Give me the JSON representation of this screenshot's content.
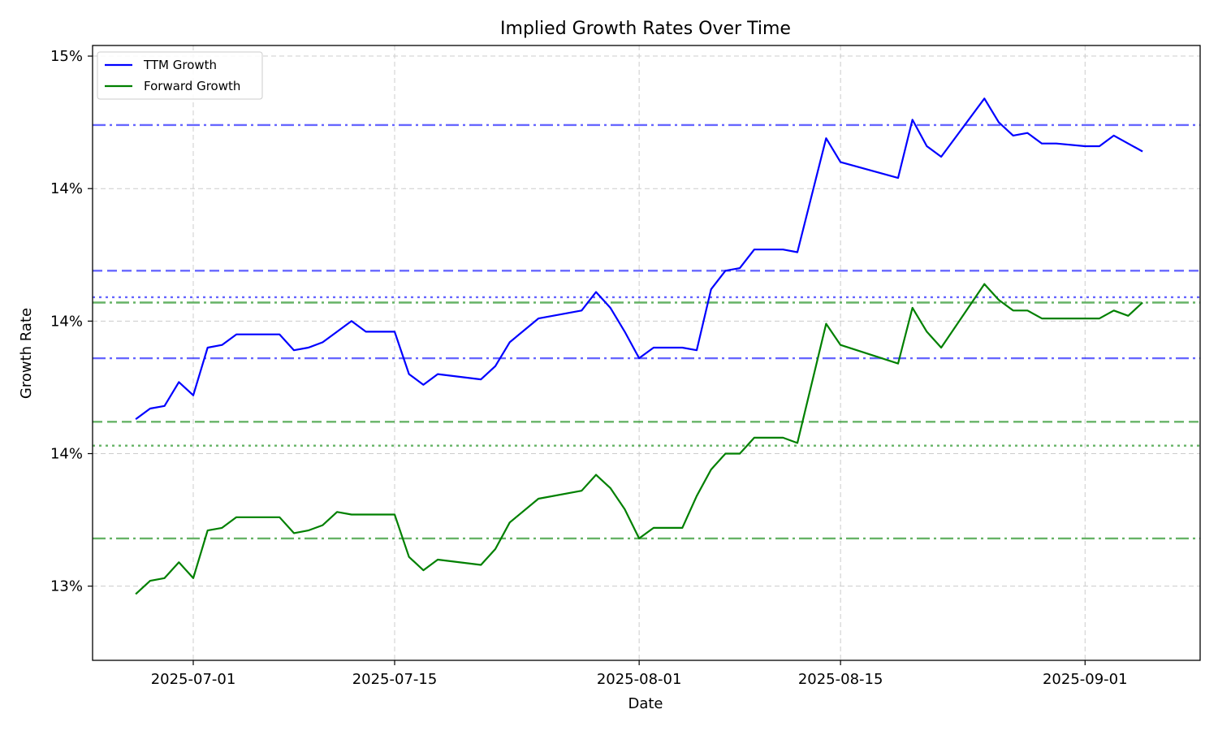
{
  "chart_data": {
    "type": "line",
    "title": "Implied Growth Rates Over Time",
    "xlabel": "Date",
    "ylabel": "Growth Rate",
    "grid": true,
    "legend_position": "top-left",
    "x_range": [
      "2025-06-24",
      "2025-09-09"
    ],
    "ylim": [
      0.1272,
      0.1504
    ],
    "y_ticks": [
      {
        "value": 0.13,
        "label": "13%"
      },
      {
        "value": 0.135,
        "label": "14%"
      },
      {
        "value": 0.14,
        "label": "14%"
      },
      {
        "value": 0.145,
        "label": "14%"
      },
      {
        "value": 0.15,
        "label": "15%"
      }
    ],
    "x_ticks": [
      "2025-07-01",
      "2025-07-15",
      "2025-08-01",
      "2025-08-15",
      "2025-09-01"
    ],
    "series": [
      {
        "name": "TTM Growth",
        "color": "#0000ff",
        "points": [
          [
            "2025-06-27",
            0.1363
          ],
          [
            "2025-06-28",
            0.1367
          ],
          [
            "2025-06-29",
            0.1368
          ],
          [
            "2025-06-30",
            0.1377
          ],
          [
            "2025-07-01",
            0.1372
          ],
          [
            "2025-07-02",
            0.139
          ],
          [
            "2025-07-03",
            0.1391
          ],
          [
            "2025-07-04",
            0.1395
          ],
          [
            "2025-07-07",
            0.1395
          ],
          [
            "2025-07-08",
            0.1389
          ],
          [
            "2025-07-09",
            0.139
          ],
          [
            "2025-07-10",
            0.1392
          ],
          [
            "2025-07-11",
            0.1396
          ],
          [
            "2025-07-12",
            0.14
          ],
          [
            "2025-07-13",
            0.1396
          ],
          [
            "2025-07-14",
            0.1396
          ],
          [
            "2025-07-15",
            0.1396
          ],
          [
            "2025-07-16",
            0.138
          ],
          [
            "2025-07-17",
            0.1376
          ],
          [
            "2025-07-18",
            0.138
          ],
          [
            "2025-07-21",
            0.1378
          ],
          [
            "2025-07-22",
            0.1383
          ],
          [
            "2025-07-23",
            0.1392
          ],
          [
            "2025-07-25",
            0.1401
          ],
          [
            "2025-07-28",
            0.1404
          ],
          [
            "2025-07-29",
            0.1411
          ],
          [
            "2025-07-30",
            0.1405
          ],
          [
            "2025-07-31",
            0.1396
          ],
          [
            "2025-08-01",
            0.1386
          ],
          [
            "2025-08-02",
            0.139
          ],
          [
            "2025-08-04",
            0.139
          ],
          [
            "2025-08-05",
            0.1389
          ],
          [
            "2025-08-06",
            0.1412
          ],
          [
            "2025-08-07",
            0.1419
          ],
          [
            "2025-08-08",
            0.142
          ],
          [
            "2025-08-09",
            0.1427
          ],
          [
            "2025-08-11",
            0.1427
          ],
          [
            "2025-08-12",
            0.1426
          ],
          [
            "2025-08-14",
            0.1469
          ],
          [
            "2025-08-15",
            0.146
          ],
          [
            "2025-08-19",
            0.1454
          ],
          [
            "2025-08-20",
            0.1476
          ],
          [
            "2025-08-21",
            0.1466
          ],
          [
            "2025-08-22",
            0.1462
          ],
          [
            "2025-08-25",
            0.1484
          ],
          [
            "2025-08-26",
            0.1475
          ],
          [
            "2025-08-27",
            0.147
          ],
          [
            "2025-08-28",
            0.1471
          ],
          [
            "2025-08-29",
            0.1467
          ],
          [
            "2025-08-30",
            0.1467
          ],
          [
            "2025-09-01",
            0.1466
          ],
          [
            "2025-09-02",
            0.1466
          ],
          [
            "2025-09-03",
            0.147
          ],
          [
            "2025-09-05",
            0.1464
          ]
        ],
        "reference_lines": [
          {
            "value": 0.1474,
            "style": "dash-dot"
          },
          {
            "value": 0.1419,
            "style": "dashed"
          },
          {
            "value": 0.1409,
            "style": "dotted"
          },
          {
            "value": 0.1386,
            "style": "dash-dot"
          }
        ]
      },
      {
        "name": "Forward Growth",
        "color": "#008000",
        "points": [
          [
            "2025-06-27",
            0.1297
          ],
          [
            "2025-06-28",
            0.1302
          ],
          [
            "2025-06-29",
            0.1303
          ],
          [
            "2025-06-30",
            0.1309
          ],
          [
            "2025-07-01",
            0.1303
          ],
          [
            "2025-07-02",
            0.1321
          ],
          [
            "2025-07-03",
            0.1322
          ],
          [
            "2025-07-04",
            0.1326
          ],
          [
            "2025-07-07",
            0.1326
          ],
          [
            "2025-07-08",
            0.132
          ],
          [
            "2025-07-09",
            0.1321
          ],
          [
            "2025-07-10",
            0.1323
          ],
          [
            "2025-07-11",
            0.1328
          ],
          [
            "2025-07-12",
            0.1327
          ],
          [
            "2025-07-14",
            0.1327
          ],
          [
            "2025-07-15",
            0.1327
          ],
          [
            "2025-07-16",
            0.1311
          ],
          [
            "2025-07-17",
            0.1306
          ],
          [
            "2025-07-18",
            0.131
          ],
          [
            "2025-07-21",
            0.1308
          ],
          [
            "2025-07-22",
            0.1314
          ],
          [
            "2025-07-23",
            0.1324
          ],
          [
            "2025-07-25",
            0.1333
          ],
          [
            "2025-07-28",
            0.1336
          ],
          [
            "2025-07-29",
            0.1342
          ],
          [
            "2025-07-30",
            0.1337
          ],
          [
            "2025-07-31",
            0.1329
          ],
          [
            "2025-08-01",
            0.1318
          ],
          [
            "2025-08-02",
            0.1322
          ],
          [
            "2025-08-04",
            0.1322
          ],
          [
            "2025-08-05",
            0.1334
          ],
          [
            "2025-08-06",
            0.1344
          ],
          [
            "2025-08-07",
            0.135
          ],
          [
            "2025-08-08",
            0.135
          ],
          [
            "2025-08-09",
            0.1356
          ],
          [
            "2025-08-11",
            0.1356
          ],
          [
            "2025-08-12",
            0.1354
          ],
          [
            "2025-08-14",
            0.1399
          ],
          [
            "2025-08-15",
            0.1391
          ],
          [
            "2025-08-19",
            0.1384
          ],
          [
            "2025-08-20",
            0.1405
          ],
          [
            "2025-08-21",
            0.1396
          ],
          [
            "2025-08-22",
            0.139
          ],
          [
            "2025-08-25",
            0.1414
          ],
          [
            "2025-08-26",
            0.1408
          ],
          [
            "2025-08-27",
            0.1404
          ],
          [
            "2025-08-28",
            0.1404
          ],
          [
            "2025-08-29",
            0.1401
          ],
          [
            "2025-09-01",
            0.1401
          ],
          [
            "2025-09-02",
            0.1401
          ],
          [
            "2025-09-03",
            0.1404
          ],
          [
            "2025-09-04",
            0.1402
          ],
          [
            "2025-09-05",
            0.1407
          ]
        ],
        "reference_lines": [
          {
            "value": 0.1407,
            "style": "dash-dot"
          },
          {
            "value": 0.1362,
            "style": "dashed"
          },
          {
            "value": 0.1353,
            "style": "dotted"
          },
          {
            "value": 0.1318,
            "style": "dash-dot"
          }
        ]
      }
    ]
  }
}
